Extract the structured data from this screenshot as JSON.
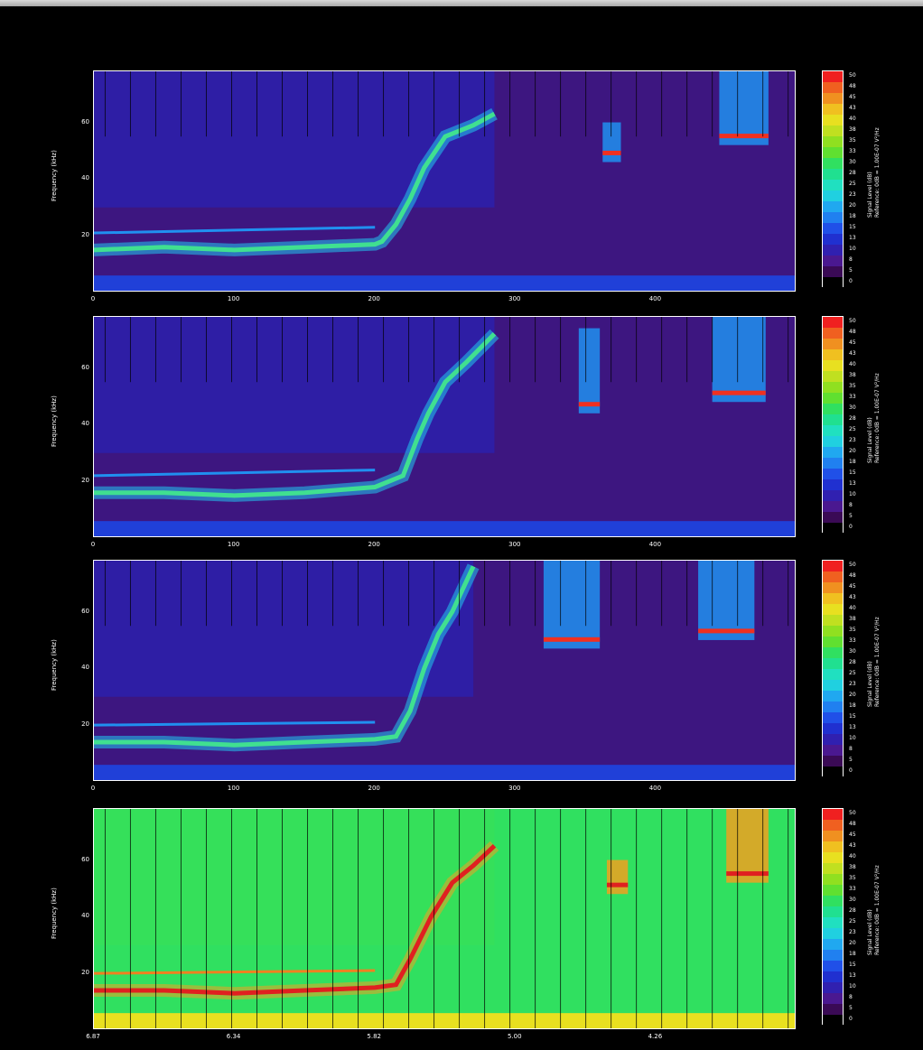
{
  "chart_data": [
    {
      "type": "heatmap",
      "ylabel": "Frequency (kHz)",
      "xtick_labels": [
        "0",
        "100",
        "200",
        "300",
        "400"
      ],
      "x_ticks": [
        0,
        100,
        200,
        300,
        400
      ],
      "xlim": [
        0,
        500
      ],
      "ytick_labels": [
        "20",
        "40",
        "60"
      ],
      "y_ticks": [
        20,
        40,
        60
      ],
      "ylim": [
        0,
        78
      ],
      "background": "#3d1680",
      "upper_background": "#2c1fa8",
      "ridge": [
        [
          0,
          15
        ],
        [
          50,
          16
        ],
        [
          100,
          15
        ],
        [
          150,
          16
        ],
        [
          200,
          17
        ],
        [
          205,
          18
        ],
        [
          215,
          24
        ],
        [
          225,
          33
        ],
        [
          235,
          44
        ],
        [
          250,
          55
        ],
        [
          270,
          59
        ],
        [
          285,
          63
        ]
      ],
      "bursts": [
        [
          362,
          375,
          46,
          60
        ],
        [
          445,
          480,
          52,
          78
        ]
      ],
      "colorbar": {
        "label": "Signal Level (dB)",
        "reference": "Reference: 0dB = 1.00E-07 V²/Hz",
        "ticks": [
          "0",
          "5",
          "8",
          "10",
          "13",
          "15",
          "18",
          "20",
          "23",
          "25",
          "28",
          "30",
          "33",
          "35",
          "38",
          "40",
          "43",
          "45",
          "48",
          "50"
        ]
      }
    },
    {
      "type": "heatmap",
      "ylabel": "Frequency (kHz)",
      "xtick_labels": [
        "0",
        "100",
        "200",
        "300",
        "400"
      ],
      "x_ticks": [
        0,
        100,
        200,
        300,
        400
      ],
      "xlim": [
        0,
        500
      ],
      "ytick_labels": [
        "20",
        "40",
        "60"
      ],
      "y_ticks": [
        20,
        40,
        60
      ],
      "ylim": [
        0,
        78
      ],
      "background": "#3d1680",
      "upper_background": "#2c1fa8",
      "ridge": [
        [
          0,
          16
        ],
        [
          50,
          16
        ],
        [
          100,
          15
        ],
        [
          150,
          16
        ],
        [
          200,
          18
        ],
        [
          220,
          22
        ],
        [
          230,
          35
        ],
        [
          238,
          44
        ],
        [
          250,
          55
        ],
        [
          265,
          62
        ],
        [
          285,
          72
        ]
      ],
      "bursts": [
        [
          345,
          360,
          44,
          74
        ],
        [
          440,
          478,
          48,
          78
        ]
      ],
      "colorbar": {
        "label": "Signal Level (dB)",
        "reference": "Reference: 0dB = 1.00E-07 V²/Hz",
        "ticks": [
          "0",
          "5",
          "8",
          "10",
          "13",
          "15",
          "18",
          "20",
          "23",
          "25",
          "28",
          "30",
          "33",
          "35",
          "38",
          "40",
          "43",
          "45",
          "48",
          "50"
        ]
      }
    },
    {
      "type": "heatmap",
      "ylabel": "Frequency (kHz)",
      "xtick_labels": [
        "0",
        "100",
        "200",
        "300",
        "400"
      ],
      "x_ticks": [
        0,
        100,
        200,
        300,
        400
      ],
      "xlim": [
        0,
        500
      ],
      "ytick_labels": [
        "20",
        "40",
        "60"
      ],
      "y_ticks": [
        20,
        40,
        60
      ],
      "ylim": [
        0,
        78
      ],
      "background": "#3d1680",
      "upper_background": "#2c1fa8",
      "ridge": [
        [
          0,
          14
        ],
        [
          50,
          14
        ],
        [
          100,
          13
        ],
        [
          150,
          14
        ],
        [
          200,
          15
        ],
        [
          215,
          16
        ],
        [
          225,
          25
        ],
        [
          235,
          40
        ],
        [
          245,
          52
        ],
        [
          255,
          60
        ],
        [
          270,
          76
        ]
      ],
      "bursts": [
        [
          320,
          360,
          47,
          78
        ],
        [
          430,
          470,
          50,
          78
        ]
      ],
      "colorbar": {
        "label": "Signal Level (dB)",
        "reference": "Reference: 0dB = 1.00E-07 V²/Hz",
        "ticks": [
          "0",
          "5",
          "8",
          "10",
          "13",
          "15",
          "18",
          "20",
          "23",
          "25",
          "28",
          "30",
          "33",
          "35",
          "38",
          "40",
          "43",
          "45",
          "48",
          "50"
        ]
      }
    },
    {
      "type": "heatmap",
      "ylabel": "Frequency (kHz)",
      "xtick_labels": [
        "6.87",
        "6.34",
        "5.82",
        "5.00",
        "4.26"
      ],
      "x_ticks": [
        0,
        100,
        200,
        300,
        400
      ],
      "xlim": [
        0,
        500
      ],
      "ytick_labels": [
        "20",
        "40",
        "60"
      ],
      "y_ticks": [
        20,
        40,
        60
      ],
      "ylim": [
        0,
        78
      ],
      "background": "#30e060",
      "upper_background": "#40e050",
      "ridge": [
        [
          0,
          14
        ],
        [
          50,
          14
        ],
        [
          100,
          13
        ],
        [
          150,
          14
        ],
        [
          200,
          15
        ],
        [
          215,
          16
        ],
        [
          225,
          25
        ],
        [
          240,
          40
        ],
        [
          255,
          52
        ],
        [
          270,
          58
        ],
        [
          285,
          65
        ]
      ],
      "bursts": [
        [
          365,
          380,
          48,
          60
        ],
        [
          450,
          480,
          52,
          78
        ]
      ],
      "colorbar": {
        "label": "Signal Level (dB)",
        "reference": "Reference: 0dB = 1.00E-07 V²/Hz",
        "ticks": [
          "0",
          "5",
          "8",
          "10",
          "13",
          "15",
          "18",
          "20",
          "23",
          "25",
          "28",
          "30",
          "33",
          "35",
          "38",
          "40",
          "43",
          "45",
          "48",
          "50"
        ]
      }
    }
  ],
  "colorbar_colors": [
    "#000000",
    "#3a0a55",
    "#4a1890",
    "#3020b0",
    "#2030d0",
    "#2050e8",
    "#2080f0",
    "#20a8f0",
    "#20d0e0",
    "#20e0c0",
    "#20e090",
    "#30e060",
    "#60e030",
    "#90e020",
    "#c0e020",
    "#e8e020",
    "#f0c020",
    "#f09020",
    "#f06020",
    "#f02020"
  ]
}
